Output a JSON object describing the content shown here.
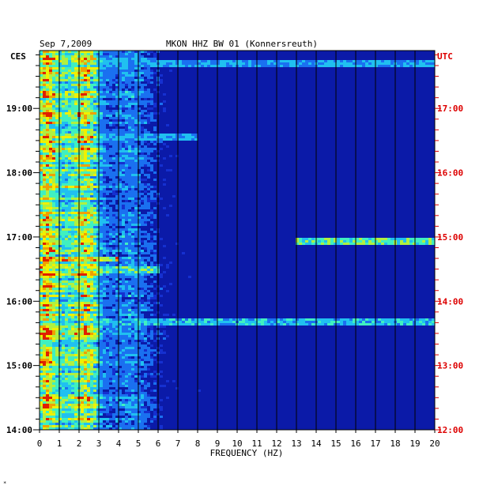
{
  "header": {
    "date": "Sep 7,2009",
    "station": "MKON HHZ BW 01 (Konnersreuth)"
  },
  "axes": {
    "left_zone": "CES",
    "right_zone": "UTC",
    "xlabel": "FREQUENCY (HZ)"
  },
  "colors": {
    "background_spectrum": "#0b1aa8",
    "grid_lines": "#000000",
    "right_axis_text": "#dd0000",
    "left_axis_text": "#000000"
  },
  "footer_mark": "*",
  "chart_data": {
    "type": "heatmap",
    "title": "MKON HHZ BW 01 (Konnersreuth)",
    "subtitle": "Sep 7,2009",
    "xlabel": "FREQUENCY (HZ)",
    "ylabel_left": "CES",
    "ylabel_right": "UTC",
    "xlim": [
      0,
      20
    ],
    "x_ticks": [
      "0",
      "1",
      "2",
      "3",
      "4",
      "5",
      "6",
      "7",
      "8",
      "9",
      "10",
      "11",
      "12",
      "13",
      "14",
      "15",
      "16",
      "17",
      "18",
      "19",
      "20"
    ],
    "ylim_left_hours": [
      14.0,
      19.9
    ],
    "left_ticks": [
      {
        "hour": 14,
        "label": "14:00"
      },
      {
        "hour": 15,
        "label": "15:00"
      },
      {
        "hour": 16,
        "label": "16:00"
      },
      {
        "hour": 17,
        "label": "17:00"
      },
      {
        "hour": 18,
        "label": "18:00"
      },
      {
        "hour": 19,
        "label": "19:00"
      }
    ],
    "right_ticks": [
      {
        "hour": 14,
        "label": "12:00"
      },
      {
        "hour": 15,
        "label": "13:00"
      },
      {
        "hour": 16,
        "label": "14:00"
      },
      {
        "hour": 17,
        "label": "15:00"
      },
      {
        "hour": 18,
        "label": "16:00"
      },
      {
        "hour": 19,
        "label": "17:00"
      }
    ],
    "grid": true,
    "colormap": [
      "#0a10a0",
      "#1530d0",
      "#1a70f0",
      "#20c0f0",
      "#40f0c0",
      "#b0f040",
      "#f0f000",
      "#f0a000",
      "#e02000"
    ],
    "energy_bands": [
      {
        "f_center": 0.3,
        "width": 0.5,
        "intensity": 0.75
      },
      {
        "f_center": 2.4,
        "width": 0.7,
        "intensity": 0.7
      },
      {
        "f_center": 1.2,
        "width": 0.8,
        "intensity": 0.45
      },
      {
        "f_center": 4.5,
        "width": 1.2,
        "intensity": 0.25
      }
    ],
    "events": [
      {
        "hour": 16.65,
        "f_from": 0,
        "f_to": 4,
        "intensity": 0.85
      },
      {
        "hour": 16.5,
        "f_from": 0,
        "f_to": 6,
        "intensity": 0.6
      },
      {
        "hour": 15.67,
        "f_from": 0,
        "f_to": 20,
        "intensity": 0.45
      },
      {
        "hour": 16.92,
        "f_from": 13,
        "f_to": 20,
        "intensity": 0.6
      },
      {
        "hour": 19.7,
        "f_from": 0,
        "f_to": 20,
        "intensity": 0.4
      },
      {
        "hour": 18.55,
        "f_from": 0,
        "f_to": 8,
        "intensity": 0.4
      }
    ]
  }
}
